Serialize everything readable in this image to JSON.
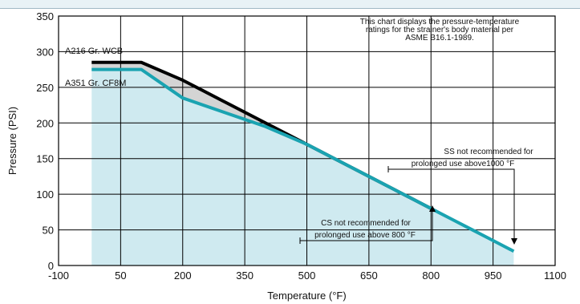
{
  "chart_data": {
    "type": "line",
    "xlabel": "Temperature (°F)",
    "ylabel": "Pressure (PSI)",
    "xlim": [
      -100,
      1100
    ],
    "ylim": [
      0,
      350
    ],
    "x_ticks": [
      "-100",
      "50",
      "200",
      "350",
      "500",
      "650",
      "800",
      "950",
      "1100"
    ],
    "y_ticks": [
      "0",
      "50",
      "100",
      "150",
      "200",
      "250",
      "300",
      "350"
    ],
    "grid": true,
    "series": [
      {
        "name": "A216 Gr. WCB",
        "color": "#000000",
        "x": [
          -20,
          100,
          200,
          300,
          400,
          500,
          600,
          650,
          700,
          750,
          800
        ],
        "y": [
          285,
          285,
          260,
          230,
          200,
          170,
          140,
          125,
          110,
          95,
          80
        ]
      },
      {
        "name": "A351 Gr. CF8M",
        "color": "#1aa3b1",
        "x": [
          -20,
          100,
          200,
          300,
          400,
          500,
          600,
          650,
          700,
          750,
          800,
          850,
          900,
          950,
          1000
        ],
        "y": [
          275,
          275,
          235,
          215,
          195,
          170,
          140,
          125,
          110,
          95,
          80,
          65,
          50,
          35,
          20
        ]
      }
    ],
    "annotations": [
      {
        "text_lines": [
          "This chart displays the pressure-temperature",
          "ratings for the strainer's body material per",
          "ASME B16.1-1989."
        ]
      },
      {
        "text_lines": [
          "SS not recommended for",
          "prolonged use above1000 °F"
        ]
      },
      {
        "text_lines": [
          "CS not recommended for",
          "prolonged use above 800 °F"
        ]
      }
    ]
  }
}
